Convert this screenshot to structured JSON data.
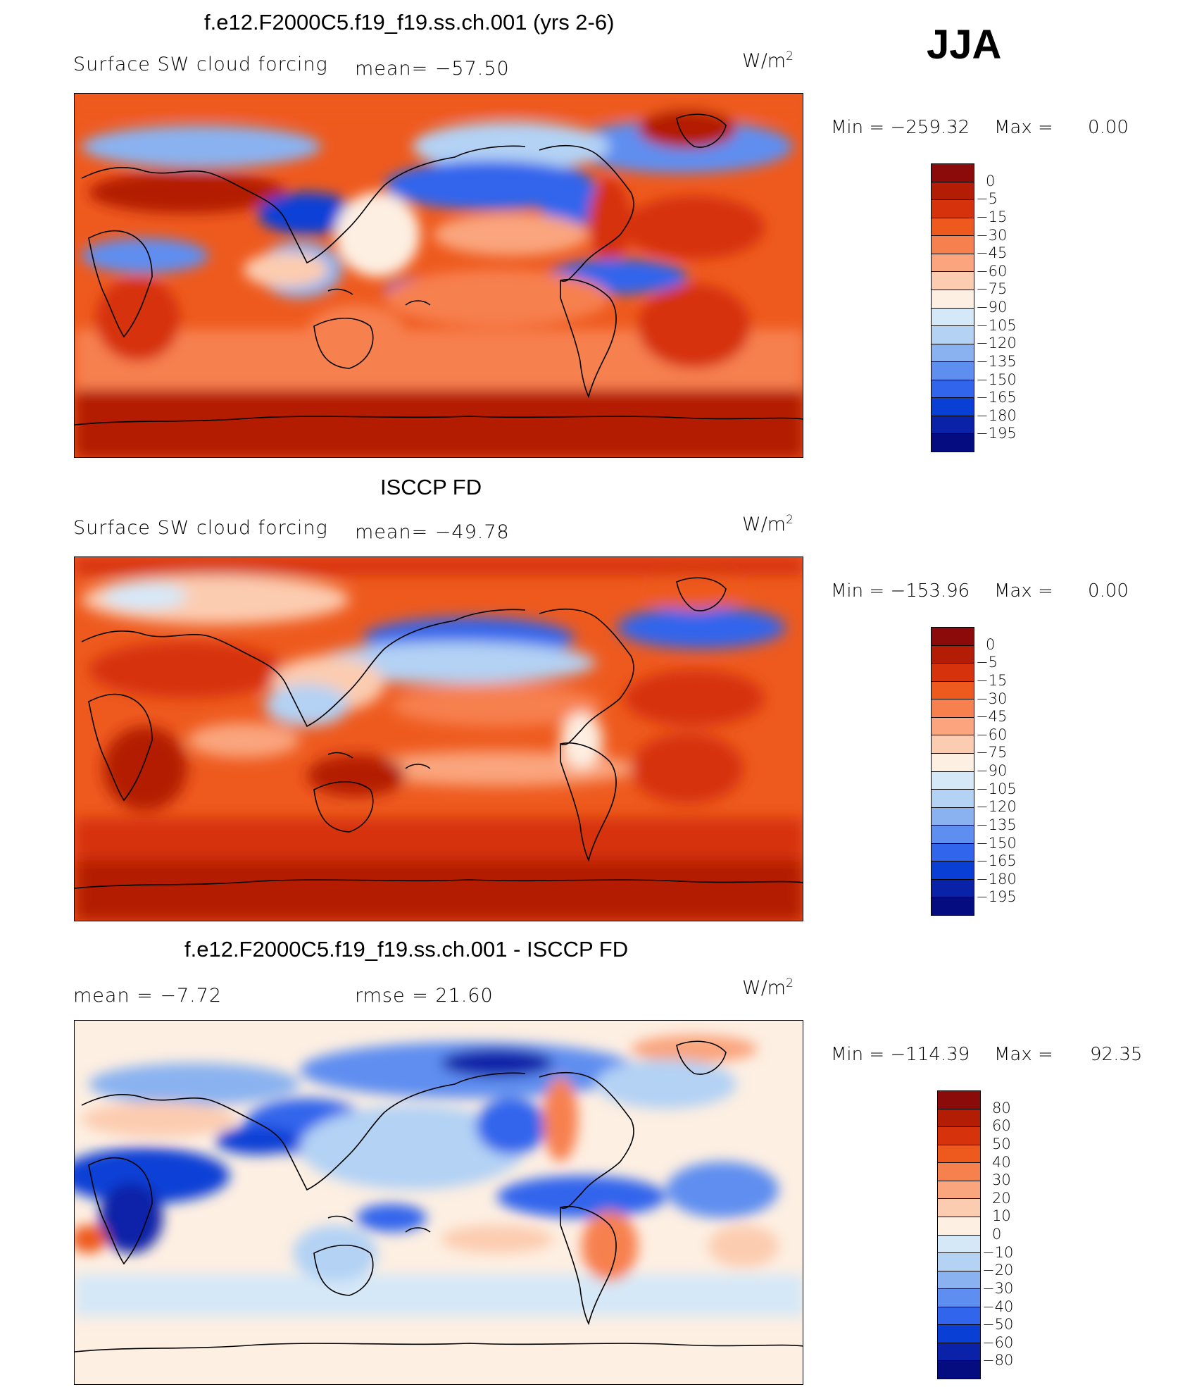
{
  "season": "JJA",
  "panels": [
    {
      "title": "f.e12.F2000C5.f19_f19.ss.ch.001 (yrs 2-6)",
      "label_left": "Surface SW cloud forcing",
      "label_mid": "mean=  −57.50",
      "units_base": "W/m",
      "units_exp": "2",
      "min_label": "Min  =  −259.32",
      "max_label": "Max  =",
      "max_value": "0.00"
    },
    {
      "title": "ISCCP FD",
      "label_left": "Surface SW cloud forcing",
      "label_mid": "mean=  −49.78",
      "units_base": "W/m",
      "units_exp": "2",
      "min_label": "Min  =  −153.96",
      "max_label": "Max  =",
      "max_value": "0.00"
    },
    {
      "title": "f.e12.F2000C5.f19_f19.ss.ch.001 - ISCCP FD",
      "label_left": "mean  =    −7.72",
      "label_mid": "rmse  =    21.60",
      "units_base": "W/m",
      "units_exp": "2",
      "min_label": "Min  =  −114.39",
      "max_label": "Max  =",
      "max_value": "92.35"
    }
  ],
  "colorbars": [
    {
      "labels": [
        "0",
        "−5",
        "−15",
        "−30",
        "−45",
        "−60",
        "−75",
        "−90",
        "−105",
        "−120",
        "−135",
        "−150",
        "−165",
        "−180",
        "−195"
      ],
      "colors": [
        "#8b0a0a",
        "#b31d06",
        "#d6330d",
        "#ee5a1e",
        "#f7804f",
        "#faa57e",
        "#fcccb0",
        "#fdefe2",
        "#d5e8f7",
        "#b3d2f4",
        "#8ab2f0",
        "#5e8ef0",
        "#3065ec",
        "#0a3fd6",
        "#0a22a8",
        "#040c80"
      ]
    },
    {
      "labels": [
        "0",
        "−5",
        "−15",
        "−30",
        "−45",
        "−60",
        "−75",
        "−90",
        "−105",
        "−120",
        "−135",
        "−150",
        "−165",
        "−180",
        "−195"
      ],
      "colors": [
        "#8b0a0a",
        "#b31d06",
        "#d6330d",
        "#ee5a1e",
        "#f7804f",
        "#faa57e",
        "#fcccb0",
        "#fdefe2",
        "#d5e8f7",
        "#b3d2f4",
        "#8ab2f0",
        "#5e8ef0",
        "#3065ec",
        "#0a3fd6",
        "#0a22a8",
        "#040c80"
      ]
    },
    {
      "labels": [
        "80",
        "60",
        "50",
        "40",
        "30",
        "20",
        "10",
        "0",
        "−10",
        "−20",
        "−30",
        "−40",
        "−50",
        "−60",
        "−80"
      ],
      "colors": [
        "#8b0a0a",
        "#b31d06",
        "#d6330d",
        "#ee5a1e",
        "#f7804f",
        "#faa57e",
        "#fcccb0",
        "#fdefe2",
        "#d5e8f7",
        "#b3d2f4",
        "#8ab2f0",
        "#5e8ef0",
        "#3065ec",
        "#0a3fd6",
        "#0a22a8",
        "#040c80"
      ]
    }
  ]
}
